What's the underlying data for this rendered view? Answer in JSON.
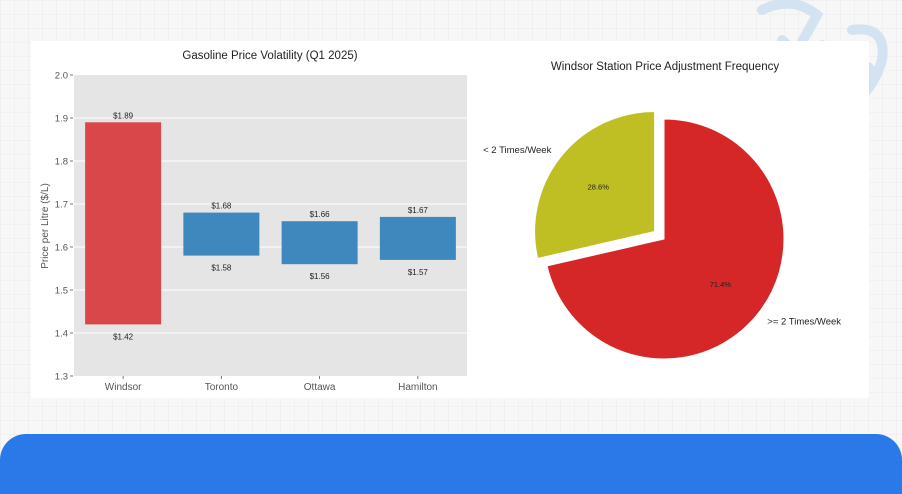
{
  "chart_data": [
    {
      "type": "bar",
      "subtype": "floating-range",
      "title": "Gasoline Price Volatility (Q1 2025)",
      "xlabel": "",
      "ylabel": "Price per Litre ($/L)",
      "ylim": [
        1.3,
        2.0
      ],
      "yticks": [
        "1.3",
        "1.4",
        "1.5",
        "1.6",
        "1.7",
        "1.8",
        "1.9",
        "2.0"
      ],
      "grid": true,
      "categories": [
        "Windsor",
        "Toronto",
        "Ottawa",
        "Hamilton"
      ],
      "series": [
        {
          "name": "Low",
          "values": [
            1.42,
            1.58,
            1.56,
            1.57
          ]
        },
        {
          "name": "High",
          "values": [
            1.89,
            1.68,
            1.66,
            1.67
          ]
        }
      ],
      "bar_colors": [
        "#d9474a",
        "#3f88bd",
        "#3f88bd",
        "#3f88bd"
      ],
      "high_labels": [
        "$1.89",
        "$1.68",
        "$1.66",
        "$1.67"
      ],
      "low_labels": [
        "$1.42",
        "$1.58",
        "$1.56",
        "$1.57"
      ]
    },
    {
      "type": "pie",
      "title": "Windsor Station Price Adjustment Frequency",
      "labels": [
        "< 2 Times/Week",
        ">= 2 Times/Week"
      ],
      "values": [
        28.6,
        71.4
      ],
      "pct_labels": [
        "28.6%",
        "71.4%"
      ],
      "colors": [
        "#bfbf24",
        "#d62728"
      ],
      "explode": [
        0.1,
        0
      ]
    }
  ],
  "colors": {
    "accent_bar": "#2b78e8",
    "plot_bg": "#e5e5e5"
  }
}
